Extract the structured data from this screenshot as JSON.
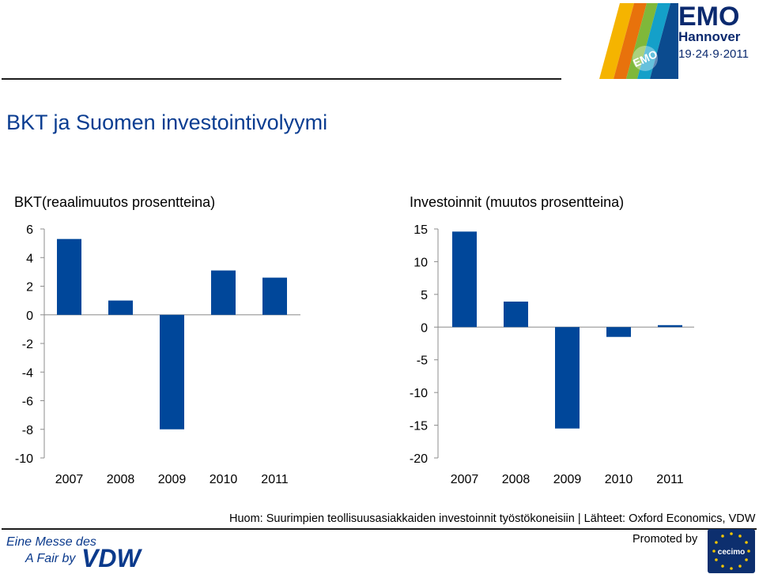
{
  "header": {
    "logo_text": "EMO",
    "logo_city": "Hannover",
    "logo_dates": "19·24·9·2011",
    "logo_badge": "EMO"
  },
  "page_title": "BKT ja Suomen investointivolyymi",
  "chart_data": [
    {
      "type": "bar",
      "title": "BKT(reaalimuutos prosentteina)",
      "categories": [
        "2007",
        "2008",
        "2009",
        "2010",
        "2011"
      ],
      "values": [
        5.3,
        1.0,
        -8.0,
        3.1,
        2.6
      ],
      "ylim": [
        -10,
        6
      ],
      "yticks": [
        6,
        4,
        2,
        0,
        -2,
        -4,
        -6,
        -8,
        -10
      ],
      "xlabel": "",
      "ylabel": "",
      "color": "#00479a",
      "grid": false,
      "legend": "none"
    },
    {
      "type": "bar",
      "title": "Investoinnit (muutos prosentteina)",
      "categories": [
        "2007",
        "2008",
        "2009",
        "2010",
        "2011"
      ],
      "values": [
        14.6,
        3.9,
        -15.5,
        -1.5,
        0.3
      ],
      "ylim": [
        -20,
        15
      ],
      "yticks": [
        15,
        10,
        5,
        0,
        -5,
        -10,
        -15,
        -20
      ],
      "xlabel": "",
      "ylabel": "",
      "color": "#00479a",
      "grid": false,
      "legend": "none"
    }
  ],
  "note": "Huom: Suurimpien teollisuusasiakkaiden investoinnit työstökoneisiin | Lähteet: Oxford Economics, VDW",
  "footer": {
    "messe_line1": "Eine Messe des",
    "messe_line2": "A Fair by",
    "vdw": "VDW",
    "promoted_by": "Promoted by",
    "cecimo": "cecimo"
  },
  "colors": {
    "bar": "#00479a",
    "title": "#0a3d91",
    "vdw": "#0b3a8c",
    "cecimo_bg": "#0d2f6e",
    "star": "#f2c500"
  }
}
